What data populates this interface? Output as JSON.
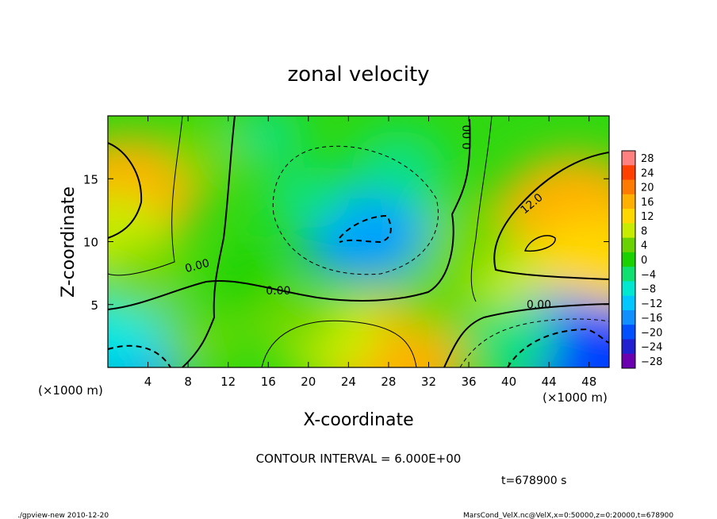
{
  "chart_data": {
    "type": "heatmap",
    "title": "zonal velocity",
    "xlabel": "X-coordinate",
    "ylabel": "Z-coordinate",
    "x_unit": "(×1000 m)",
    "y_unit": "(×1000 m)",
    "xlim": [
      0,
      50
    ],
    "ylim": [
      0,
      20
    ],
    "x_ticks": [
      "4",
      "8",
      "12",
      "16",
      "20",
      "24",
      "28",
      "32",
      "36",
      "40",
      "44",
      "48"
    ],
    "x_tick_values": [
      4,
      8,
      12,
      16,
      20,
      24,
      28,
      32,
      36,
      40,
      44,
      48
    ],
    "y_ticks": [
      "5",
      "10",
      "15"
    ],
    "y_tick_values": [
      5,
      10,
      15
    ],
    "colorbar_labels": [
      "28",
      "24",
      "20",
      "16",
      "12",
      "8",
      "4",
      "0",
      "−4",
      "−8",
      "−12",
      "−16",
      "−20",
      "−24",
      "−28"
    ],
    "colorbar_colors": [
      "#ff8080",
      "#ff4000",
      "#ff7a00",
      "#ffb000",
      "#ffd800",
      "#c8ec00",
      "#6ad200",
      "#1ad200",
      "#10e070",
      "#00e8d0",
      "#00c8ff",
      "#1090ff",
      "#0050ff",
      "#2020d0",
      "#6a00b0"
    ],
    "contour_labels": [
      {
        "text": "0.00",
        "x": 17.0,
        "y": 5.8
      },
      {
        "text": "0.00",
        "x": 9.0,
        "y": 7.8
      },
      {
        "text": "0.00",
        "x": 36.2,
        "y": 18.3
      },
      {
        "text": "12.0",
        "x": 42.5,
        "y": 12.8
      },
      {
        "text": "0.00",
        "x": 43.0,
        "y": 4.7
      }
    ],
    "blobs": [
      {
        "x": 2.0,
        "y": 14.0,
        "value": 16
      },
      {
        "x": 0.5,
        "y": 10.5,
        "value": 10
      },
      {
        "x": 10.0,
        "y": 17.0,
        "value": 4
      },
      {
        "x": 16.0,
        "y": 18.5,
        "value": -2
      },
      {
        "x": 27.0,
        "y": 12.0,
        "value": -10
      },
      {
        "x": 25.5,
        "y": 10.5,
        "value": -12
      },
      {
        "x": 29.0,
        "y": 16.0,
        "value": -6
      },
      {
        "x": 20.0,
        "y": 13.5,
        "value": -4
      },
      {
        "x": 43.0,
        "y": 10.0,
        "value": 20
      },
      {
        "x": 46.5,
        "y": 12.5,
        "value": 17
      },
      {
        "x": 48.5,
        "y": 8.0,
        "value": 14
      },
      {
        "x": 38.5,
        "y": 7.5,
        "value": 8
      },
      {
        "x": 36.0,
        "y": 10.5,
        "value": 6
      },
      {
        "x": 2.0,
        "y": 1.5,
        "value": -14
      },
      {
        "x": 0.5,
        "y": 3.0,
        "value": -8
      },
      {
        "x": 45.0,
        "y": 1.8,
        "value": -14
      },
      {
        "x": 49.0,
        "y": 0.5,
        "value": -18
      },
      {
        "x": 40.5,
        "y": 2.0,
        "value": -6
      },
      {
        "x": 27.0,
        "y": 2.0,
        "value": 12
      },
      {
        "x": 28.5,
        "y": 0.5,
        "value": 16
      },
      {
        "x": 22.0,
        "y": 2.5,
        "value": 9
      },
      {
        "x": 18.0,
        "y": 4.0,
        "value": 6
      },
      {
        "x": 9.0,
        "y": 2.0,
        "value": 3
      },
      {
        "x": 33.0,
        "y": 5.5,
        "value": 6
      },
      {
        "x": 14.0,
        "y": 7.0,
        "value": 2
      },
      {
        "x": 4.0,
        "y": 7.0,
        "value": 6
      }
    ]
  },
  "footer": {
    "contour_interval": "CONTOUR INTERVAL = 6.000E+00",
    "time": "t=678900 s",
    "left_note": "./gpview-new   2010-12-20",
    "right_note": "MarsCond_VelX.nc@VelX,x=0:50000,z=0:20000,t=678900"
  }
}
